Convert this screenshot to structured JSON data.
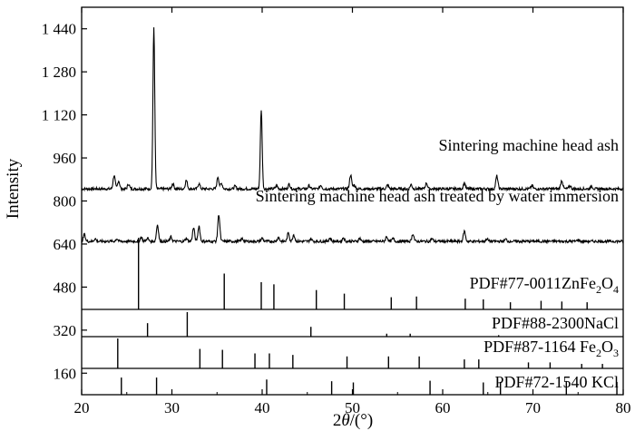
{
  "chart_data": {
    "type": "line",
    "xlabel": "2θ/(°)",
    "xlabel_parts": {
      "prefix": "2",
      "var": "θ",
      "suffix": "/(°)"
    },
    "ylabel": "Intensity",
    "xlim": [
      20,
      80
    ],
    "ylim": [
      80,
      1520
    ],
    "x_ticks": [
      20,
      30,
      40,
      50,
      60,
      70,
      80
    ],
    "y_ticks": [
      160,
      320,
      480,
      640,
      800,
      960,
      1120,
      1280,
      1440
    ],
    "y_tick_labels": [
      "160",
      "320",
      "480",
      "640",
      "800",
      "960",
      "1 120",
      "1 280",
      "1 440"
    ],
    "series": [
      {
        "name": "Sintering machine head ash",
        "baseline": 845,
        "peaks": [
          [
            23.6,
            50
          ],
          [
            24.1,
            30
          ],
          [
            25.2,
            18
          ],
          [
            28.0,
            600
          ],
          [
            30.1,
            20
          ],
          [
            31.6,
            32
          ],
          [
            33.0,
            20
          ],
          [
            35.1,
            45
          ],
          [
            35.5,
            20
          ],
          [
            37.0,
            10
          ],
          [
            39.9,
            295
          ],
          [
            41.6,
            12
          ],
          [
            43.0,
            18
          ],
          [
            45.2,
            12
          ],
          [
            46.5,
            14
          ],
          [
            49.8,
            52
          ],
          [
            50.2,
            15
          ],
          [
            53.9,
            14
          ],
          [
            56.5,
            16
          ],
          [
            58.2,
            22
          ],
          [
            62.4,
            22
          ],
          [
            66.0,
            48
          ],
          [
            69.9,
            12
          ],
          [
            73.2,
            32
          ],
          [
            74.1,
            12
          ],
          [
            76.5,
            10
          ]
        ]
      },
      {
        "name": "Sintering machine head ash treated by water immersion",
        "baseline": 650,
        "peaks": [
          [
            20.3,
            25
          ],
          [
            21.5,
            10
          ],
          [
            23.9,
            10
          ],
          [
            26.6,
            16
          ],
          [
            27.3,
            12
          ],
          [
            28.4,
            62
          ],
          [
            29.9,
            16
          ],
          [
            31.6,
            12
          ],
          [
            32.4,
            50
          ],
          [
            33.0,
            58
          ],
          [
            35.2,
            100
          ],
          [
            37.8,
            10
          ],
          [
            40.0,
            12
          ],
          [
            41.8,
            15
          ],
          [
            42.9,
            32
          ],
          [
            43.5,
            25
          ],
          [
            45.4,
            10
          ],
          [
            47.5,
            12
          ],
          [
            49.0,
            14
          ],
          [
            50.8,
            12
          ],
          [
            53.8,
            18
          ],
          [
            54.5,
            10
          ],
          [
            56.7,
            28
          ],
          [
            58.8,
            10
          ],
          [
            62.4,
            38
          ],
          [
            64.9,
            10
          ],
          [
            67.0,
            8
          ],
          [
            75.0,
            6
          ]
        ]
      }
    ],
    "reference_patterns": [
      {
        "label": "PDF#77-0011ZnFe",
        "subscript_a": "2",
        "mid": "O",
        "subscript_b": "4",
        "lines": [
          [
            26.3,
            1.0
          ],
          [
            35.8,
            0.5
          ],
          [
            39.9,
            0.38
          ],
          [
            41.3,
            0.35
          ],
          [
            46.0,
            0.27
          ],
          [
            49.1,
            0.22
          ],
          [
            54.3,
            0.17
          ],
          [
            57.1,
            0.18
          ],
          [
            62.5,
            0.15
          ],
          [
            64.5,
            0.14
          ],
          [
            67.5,
            0.1
          ],
          [
            70.9,
            0.12
          ],
          [
            73.2,
            0.11
          ],
          [
            76.0,
            0.1
          ]
        ]
      },
      {
        "label": "PDF#88-2300NaCl",
        "lines": [
          [
            27.3,
            0.55
          ],
          [
            31.7,
            1.0
          ],
          [
            45.4,
            0.4
          ],
          [
            53.8,
            0.12
          ],
          [
            56.4,
            0.12
          ],
          [
            66.2,
            0.06
          ]
        ]
      },
      {
        "label": "PDF#87-1164 Fe",
        "subscript_a": "2",
        "mid": "O",
        "subscript_b": "3",
        "lines": [
          [
            24.0,
            1.0
          ],
          [
            33.1,
            0.65
          ],
          [
            35.6,
            0.62
          ],
          [
            39.2,
            0.5
          ],
          [
            40.8,
            0.5
          ],
          [
            43.4,
            0.45
          ],
          [
            49.4,
            0.4
          ],
          [
            54.0,
            0.4
          ],
          [
            57.4,
            0.4
          ],
          [
            62.4,
            0.3
          ],
          [
            64.0,
            0.3
          ],
          [
            69.5,
            0.2
          ],
          [
            71.9,
            0.2
          ],
          [
            75.4,
            0.15
          ],
          [
            77.7,
            0.15
          ]
        ]
      },
      {
        "label": "PDF#72-1540 KCl",
        "lines": [
          [
            24.4,
            0.7
          ],
          [
            28.3,
            0.7
          ],
          [
            40.5,
            0.62
          ],
          [
            47.7,
            0.55
          ],
          [
            50.1,
            0.5
          ],
          [
            58.6,
            0.57
          ],
          [
            64.5,
            0.5
          ],
          [
            66.4,
            0.52
          ],
          [
            73.7,
            0.55
          ],
          [
            79.3,
            0.52
          ]
        ]
      }
    ]
  }
}
